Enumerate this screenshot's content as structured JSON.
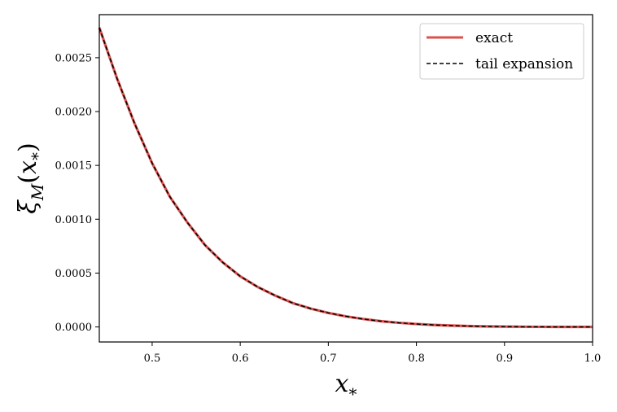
{
  "chart_data": {
    "type": "line",
    "xlabel": {
      "base": "x",
      "sub": "*"
    },
    "ylabel": {
      "base": "ξ",
      "sub": "M",
      "arg_base": "x",
      "arg_sub": "*"
    },
    "xlim": [
      0.44,
      1.0
    ],
    "ylim": [
      -0.00014,
      0.0029
    ],
    "xticks": [
      0.5,
      0.6,
      0.7,
      0.8,
      0.9,
      1.0
    ],
    "xtick_labels": [
      "0.5",
      "0.6",
      "0.7",
      "0.8",
      "0.9",
      "1.0"
    ],
    "yticks": [
      0.0,
      0.0005,
      0.001,
      0.0015,
      0.002,
      0.0025
    ],
    "ytick_labels": [
      "0.0000",
      "0.0005",
      "0.0010",
      "0.0015",
      "0.0020",
      "0.0025"
    ],
    "grid": false,
    "legend_position": "top-right",
    "x": [
      0.44,
      0.46,
      0.48,
      0.5,
      0.52,
      0.54,
      0.56,
      0.58,
      0.6,
      0.62,
      0.64,
      0.66,
      0.68,
      0.7,
      0.72,
      0.74,
      0.76,
      0.78,
      0.8,
      0.82,
      0.84,
      0.86,
      0.88,
      0.9,
      0.92,
      0.94,
      0.96,
      0.98,
      1.0
    ],
    "series": [
      {
        "name": "exact",
        "color": "#d9534f",
        "style": "solid",
        "values": [
          0.00278,
          0.00231,
          0.00189,
          0.00152,
          0.00121,
          0.00097,
          0.00076,
          0.0006,
          0.00047,
          0.00037,
          0.00029,
          0.00022,
          0.00017,
          0.00013,
          9.8e-05,
          7.3e-05,
          5.3e-05,
          3.8e-05,
          2.7e-05,
          1.8e-05,
          1.2e-05,
          7.5e-06,
          4.5e-06,
          2.5e-06,
          1.2e-06,
          5e-07,
          1.5e-07,
          3e-08,
          0.0
        ]
      },
      {
        "name": "tail expansion",
        "color": "#000000",
        "style": "dashed",
        "values": [
          0.00278,
          0.00231,
          0.00189,
          0.00152,
          0.00121,
          0.00097,
          0.00076,
          0.0006,
          0.00047,
          0.00037,
          0.00029,
          0.00022,
          0.00017,
          0.00013,
          9.8e-05,
          7.3e-05,
          5.3e-05,
          3.8e-05,
          2.7e-05,
          1.8e-05,
          1.2e-05,
          7.5e-06,
          4.5e-06,
          2.5e-06,
          1.2e-06,
          5e-07,
          1.5e-07,
          3e-08,
          0.0
        ]
      }
    ]
  }
}
